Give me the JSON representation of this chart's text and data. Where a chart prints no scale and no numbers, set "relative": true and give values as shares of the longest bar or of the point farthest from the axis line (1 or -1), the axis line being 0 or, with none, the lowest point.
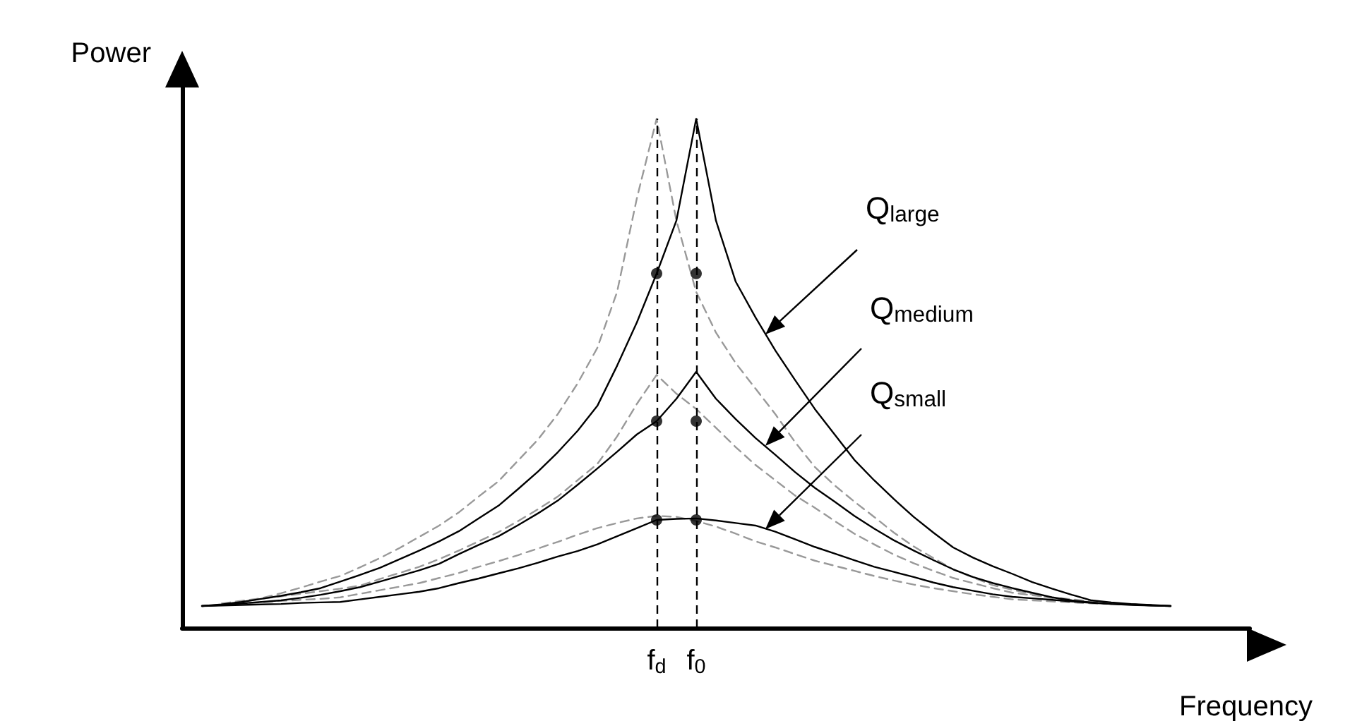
{
  "chart_data": {
    "type": "line",
    "relative": true,
    "xlabel": "Frequency",
    "ylabel": "Power",
    "categories": [
      null,
      null,
      null,
      null,
      null,
      null,
      null,
      null,
      null,
      null,
      null,
      null,
      null,
      null,
      null,
      null,
      null,
      null,
      null,
      null,
      null,
      null,
      null,
      null,
      "f$_{d}$",
      null,
      "f$_{0}$",
      null,
      null,
      null,
      null,
      null,
      null,
      null,
      null,
      null,
      null,
      null,
      null,
      null,
      null,
      null,
      null,
      null,
      null,
      null,
      null,
      null,
      null,
      null,
      null,
      null,
      null,
      null,
      null
    ],
    "grid": false,
    "marker": "none",
    "series": [
      {
        "color": "#000000",
        "line_style": "solid",
        "values": [
          null,
          0.043,
          0.046,
          0.051,
          0.057,
          0.063,
          0.07,
          0.078,
          0.091,
          0.104,
          0.118,
          0.135,
          0.152,
          0.17,
          0.19,
          0.215,
          0.24,
          0.273,
          0.307,
          0.345,
          0.387,
          0.436,
          0.515,
          0.6,
          0.696,
          0.8,
          1.0,
          0.8,
          0.68,
          0.61,
          0.545,
          0.487,
          0.43,
          0.38,
          0.33,
          0.29,
          0.253,
          0.218,
          0.187,
          0.158,
          0.138,
          0.121,
          0.106,
          0.09,
          0.077,
          0.065,
          0.054,
          0.05,
          0.047,
          0.045,
          0.043,
          null,
          null,
          null,
          null
        ]
      },
      {
        "color": "#999999",
        "line_style": "dashed",
        "values": [
          null,
          null,
          0.048,
          0.053,
          0.058,
          0.068,
          0.079,
          0.091,
          0.102,
          0.119,
          0.137,
          0.157,
          0.179,
          0.201,
          0.227,
          0.258,
          0.288,
          0.329,
          0.37,
          0.42,
          0.48,
          0.55,
          0.66,
          0.844,
          1.0,
          0.8,
          0.66,
          0.58,
          0.52,
          0.47,
          0.42,
          0.365,
          0.316,
          0.28,
          0.248,
          0.218,
          0.187,
          0.16,
          0.137,
          0.115,
          0.099,
          0.084,
          0.075,
          0.066,
          0.058,
          0.054,
          0.05,
          0.048,
          0.046,
          0.045,
          null,
          null,
          null,
          null,
          null
        ]
      },
      {
        "color": "#000000",
        "line_style": "solid",
        "values": [
          null,
          0.043,
          0.045,
          0.048,
          0.051,
          0.054,
          0.059,
          0.065,
          0.072,
          0.08,
          0.091,
          0.102,
          0.113,
          0.126,
          0.145,
          0.163,
          0.18,
          0.202,
          0.225,
          0.25,
          0.281,
          0.313,
          0.346,
          0.38,
          0.406,
          0.45,
          0.503,
          0.45,
          0.41,
          0.373,
          0.34,
          0.306,
          0.275,
          0.248,
          0.22,
          0.195,
          0.172,
          0.152,
          0.133,
          0.115,
          0.1,
          0.088,
          0.078,
          0.069,
          0.06,
          0.054,
          0.05,
          0.047,
          0.045,
          0.044,
          0.043,
          null,
          null,
          null,
          null
        ]
      },
      {
        "color": "#999999",
        "line_style": "dashed",
        "values": [
          null,
          null,
          0.047,
          0.052,
          0.057,
          0.062,
          0.067,
          0.072,
          0.077,
          0.083,
          0.096,
          0.108,
          0.12,
          0.135,
          0.152,
          0.17,
          0.188,
          0.21,
          0.233,
          0.258,
          0.29,
          0.322,
          0.376,
          0.44,
          0.497,
          0.46,
          0.43,
          0.393,
          0.355,
          0.32,
          0.29,
          0.26,
          0.236,
          0.21,
          0.185,
          0.164,
          0.144,
          0.127,
          0.112,
          0.098,
          0.088,
          0.078,
          0.069,
          0.064,
          0.06,
          0.056,
          0.052,
          0.049,
          0.046,
          0.045,
          null,
          null,
          null,
          null,
          null
        ]
      },
      {
        "color": "#000000",
        "line_style": "solid",
        "values": [
          null,
          0.043,
          0.044,
          0.045,
          0.046,
          0.047,
          0.049,
          0.05,
          0.051,
          0.056,
          0.061,
          0.066,
          0.071,
          0.078,
          0.088,
          0.097,
          0.107,
          0.117,
          0.128,
          0.14,
          0.151,
          0.164,
          0.18,
          0.196,
          0.212,
          0.214,
          0.215,
          0.211,
          0.206,
          0.201,
          0.189,
          0.174,
          0.159,
          0.146,
          0.133,
          0.12,
          0.11,
          0.1,
          0.089,
          0.08,
          0.073,
          0.066,
          0.061,
          0.058,
          0.055,
          0.052,
          0.049,
          0.047,
          0.046,
          0.044,
          0.043,
          null,
          null,
          null,
          null
        ]
      },
      {
        "color": "#999999",
        "line_style": "dashed",
        "values": [
          null,
          null,
          0.046,
          0.048,
          0.05,
          0.053,
          0.055,
          0.057,
          0.06,
          0.067,
          0.074,
          0.081,
          0.088,
          0.098,
          0.108,
          0.12,
          0.131,
          0.143,
          0.156,
          0.169,
          0.183,
          0.196,
          0.206,
          0.215,
          0.22,
          0.218,
          0.21,
          0.199,
          0.185,
          0.17,
          0.158,
          0.145,
          0.132,
          0.122,
          0.112,
          0.102,
          0.093,
          0.085,
          0.078,
          0.072,
          0.066,
          0.061,
          0.056,
          0.054,
          0.052,
          0.05,
          0.048,
          0.047,
          0.046,
          0.045,
          null,
          null,
          null,
          null,
          null
        ]
      },
      {
        "type": "scatter",
        "marker": "circle",
        "color": "#000000",
        "x": [
          "f$_{d}$",
          "f$_{0}$",
          "f$_{d}$",
          "f$_{0}$",
          "f$_{d}$",
          "f$_{0}$"
        ],
        "values": [
          0.696,
          0.696,
          0.406,
          0.406,
          0.212,
          0.212
        ]
      }
    ],
    "ref_lines": [
      {
        "axis": "x",
        "value": "f$_{d}$",
        "color": "#000000",
        "line_style": "dashed"
      },
      {
        "axis": "x",
        "value": "f$_{0}$",
        "color": "#000000",
        "line_style": "dashed"
      }
    ],
    "annotations": [
      "Q$_{large}$",
      "Q$_{medium}$",
      "Q$_{small}$"
    ]
  }
}
